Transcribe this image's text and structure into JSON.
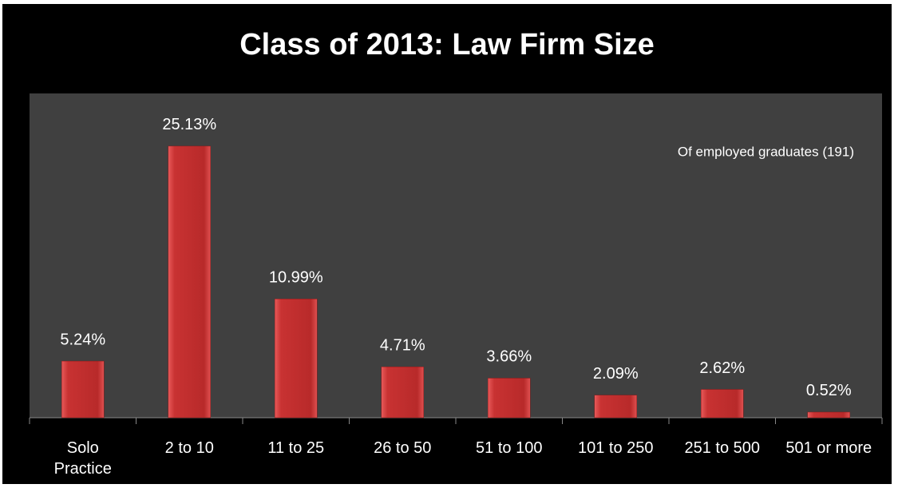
{
  "chart_data": {
    "type": "bar",
    "title": "Class of 2013: Law Firm Size",
    "annotation": "Of employed graduates (191)",
    "categories": [
      "Solo\nPractice",
      "2 to 10",
      "11 to 25",
      "26 to 50",
      "51 to 100",
      "101 to 250",
      "251 to 500",
      "501 or more"
    ],
    "values": [
      5.24,
      25.13,
      10.99,
      4.71,
      3.66,
      2.09,
      2.62,
      0.52
    ],
    "value_labels": [
      "5.24%",
      "25.13%",
      "10.99%",
      "4.71%",
      "3.66%",
      "2.09%",
      "2.62%",
      "0.52%"
    ],
    "color": "#c83232",
    "ylim": [
      0,
      30
    ]
  }
}
